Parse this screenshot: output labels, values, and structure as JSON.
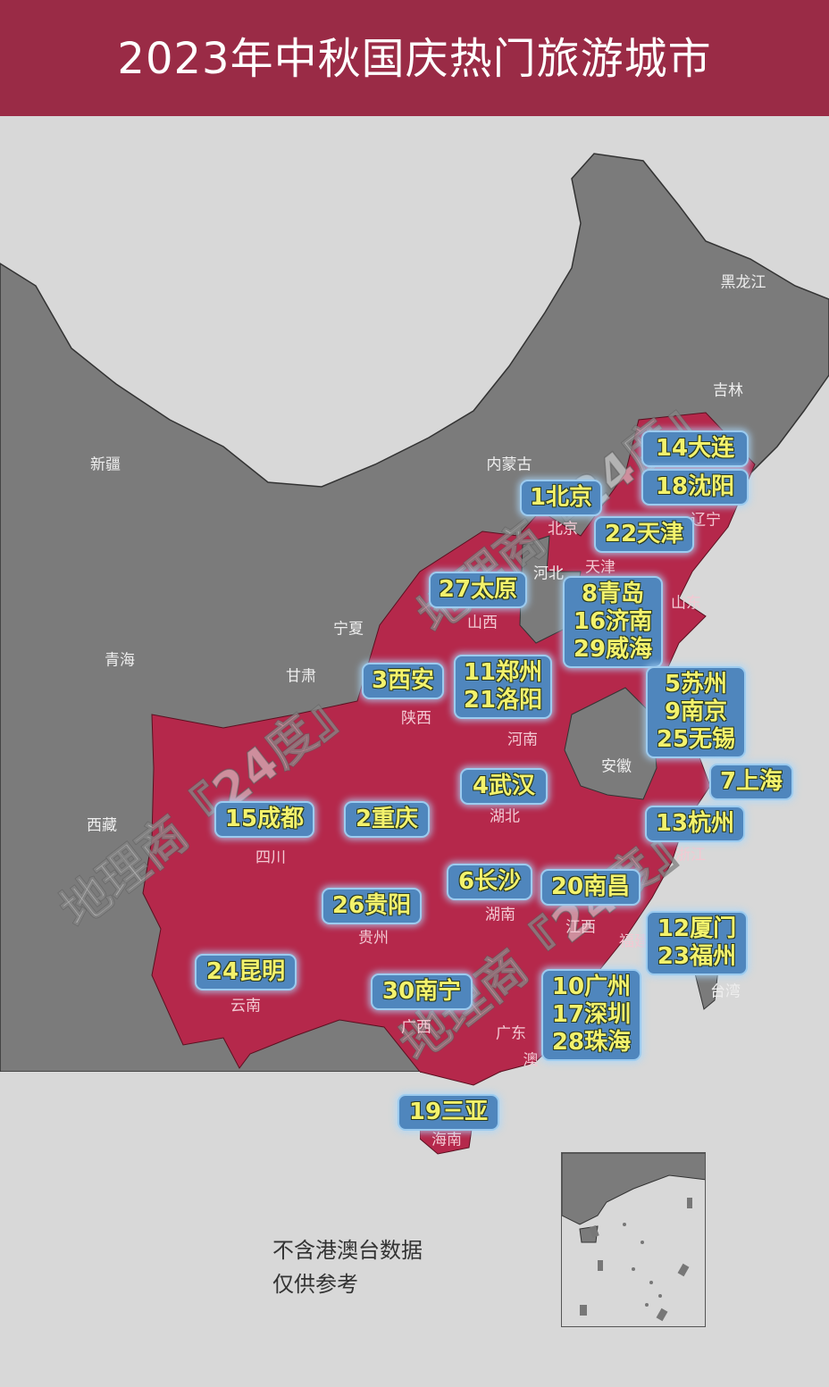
{
  "title": "2023年中秋国庆热门旅游城市",
  "colors": {
    "header": "#9a2b46",
    "highlighted_province": "#b5284b",
    "other_province": "#7b7b7b",
    "sea": "#d8d8d8",
    "label_box": "#4f86bd",
    "label_text": "#f3f26c"
  },
  "provinces": [
    "黑龙江",
    "吉林",
    "新疆",
    "内蒙古",
    "北京",
    "辽宁",
    "河北",
    "天津",
    "山东",
    "宁夏",
    "山西",
    "青海",
    "甘肃",
    "陕西",
    "河南",
    "安徽",
    "湖北",
    "西藏",
    "四川",
    "浙江",
    "湖南",
    "江西",
    "贵州",
    "福建",
    "云南",
    "广西",
    "广东",
    "台湾",
    "海南",
    "澳"
  ],
  "city_labels": [
    {
      "lines": [
        "14大连"
      ]
    },
    {
      "lines": [
        "18沈阳"
      ]
    },
    {
      "lines": [
        "1北京"
      ]
    },
    {
      "lines": [
        "22天津"
      ]
    },
    {
      "lines": [
        "27太原"
      ]
    },
    {
      "lines": [
        "8青岛",
        "16济南",
        "29威海"
      ]
    },
    {
      "lines": [
        "3西安"
      ]
    },
    {
      "lines": [
        "11郑州",
        "21洛阳"
      ]
    },
    {
      "lines": [
        "5苏州",
        "9南京",
        "25无锡"
      ]
    },
    {
      "lines": [
        "7上海"
      ]
    },
    {
      "lines": [
        "4武汉"
      ]
    },
    {
      "lines": [
        "15成都"
      ]
    },
    {
      "lines": [
        "2重庆"
      ]
    },
    {
      "lines": [
        "13杭州"
      ]
    },
    {
      "lines": [
        "6长沙"
      ]
    },
    {
      "lines": [
        "20南昌"
      ]
    },
    {
      "lines": [
        "26贵阳"
      ]
    },
    {
      "lines": [
        "12厦门",
        "23福州"
      ]
    },
    {
      "lines": [
        "24昆明"
      ]
    },
    {
      "lines": [
        "30南宁"
      ]
    },
    {
      "lines": [
        "10广州",
        "17深圳",
        "28珠海"
      ]
    },
    {
      "lines": [
        "19三亚"
      ]
    }
  ],
  "notes": [
    "不含港澳台数据",
    "仅供参考"
  ],
  "watermark": "地理商『24度』"
}
